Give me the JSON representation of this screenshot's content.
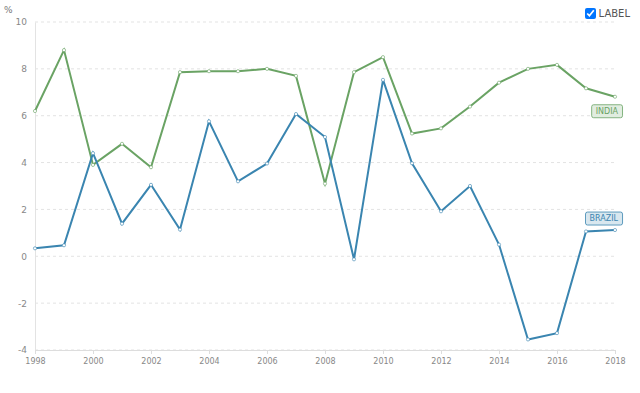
{
  "chart_data": {
    "type": "line",
    "y_label": "%",
    "annotations": [
      "LABEL"
    ],
    "x": [
      1998,
      1999,
      2000,
      2001,
      2002,
      2003,
      2004,
      2005,
      2006,
      2007,
      2008,
      2009,
      2010,
      2011,
      2012,
      2013,
      2014,
      2015,
      2016,
      2017,
      2018
    ],
    "xlim": [
      1998,
      2018
    ],
    "xticks": [
      1998,
      2000,
      2002,
      2004,
      2006,
      2008,
      2010,
      2012,
      2014,
      2016,
      2018
    ],
    "ylim": [
      -4,
      10
    ],
    "yticks": [
      -4,
      -2,
      0,
      2,
      4,
      6,
      8,
      10
    ],
    "grid": true,
    "marker": "circle",
    "series": [
      {
        "name": "INDIA",
        "color": "#6aa364",
        "values": [
          6.2,
          8.8,
          3.9,
          4.8,
          3.8,
          7.86,
          7.9,
          7.9,
          8.0,
          7.7,
          3.1,
          7.86,
          8.5,
          5.24,
          5.46,
          6.39,
          7.41,
          8.0,
          8.17,
          7.17,
          6.81
        ]
      },
      {
        "name": "BRAZIL",
        "color": "#3a85b0",
        "values": [
          0.34,
          0.47,
          4.4,
          1.39,
          3.05,
          1.14,
          5.76,
          3.2,
          3.96,
          6.07,
          5.09,
          -0.13,
          7.53,
          3.97,
          1.92,
          3.0,
          0.5,
          -3.55,
          -3.28,
          1.06,
          1.12
        ]
      }
    ]
  }
}
